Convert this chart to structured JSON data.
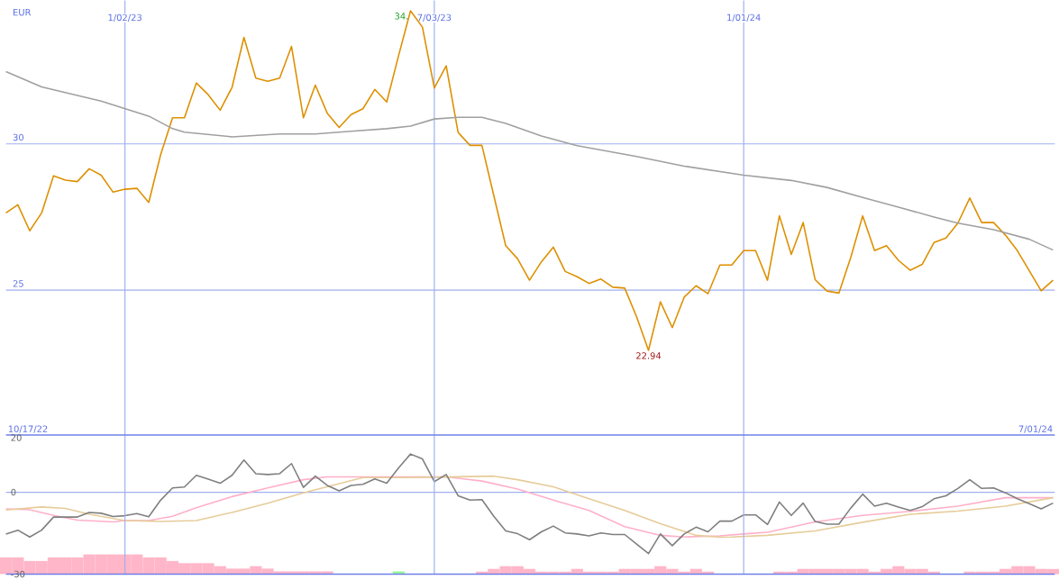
{
  "chart_data": [
    {
      "type": "line",
      "ylabel": "EUR",
      "x": [
        "2022-10-24",
        "2022-10-31",
        "2022-11-07",
        "2022-11-14",
        "2022-11-21",
        "2022-11-28",
        "2022-12-05",
        "2022-12-12",
        "2022-12-19",
        "2022-12-26",
        "2023-01-02",
        "2023-01-09",
        "2023-01-16",
        "2023-01-23",
        "2023-01-30",
        "2023-02-06",
        "2023-02-13",
        "2023-02-20",
        "2023-02-27",
        "2023-03-06",
        "2023-03-13",
        "2023-03-20",
        "2023-03-27",
        "2023-04-03",
        "2023-04-10",
        "2023-04-17",
        "2023-04-24",
        "2023-05-01",
        "2023-05-08",
        "2023-05-15",
        "2023-05-22",
        "2023-05-29",
        "2023-06-05",
        "2023-06-12",
        "2023-06-19",
        "2023-06-26",
        "2023-07-03",
        "2023-07-10",
        "2023-07-17",
        "2023-07-24",
        "2023-07-31",
        "2023-08-07",
        "2023-08-14",
        "2023-08-21",
        "2023-08-28",
        "2023-09-04",
        "2023-09-11",
        "2023-09-18",
        "2023-09-25",
        "2023-10-02",
        "2023-10-09",
        "2023-10-16",
        "2023-10-23",
        "2023-10-30",
        "2023-11-06",
        "2023-11-13",
        "2023-11-20",
        "2023-11-27",
        "2023-12-04",
        "2023-12-11",
        "2023-12-18",
        "2023-12-25",
        "2024-01-01",
        "2024-01-08",
        "2024-01-15",
        "2024-01-22",
        "2024-01-29",
        "2024-02-05",
        "2024-02-12",
        "2024-02-19",
        "2024-02-26",
        "2024-03-04",
        "2024-03-11",
        "2024-03-18",
        "2024-03-25",
        "2024-04-01",
        "2024-04-08",
        "2024-04-15",
        "2024-04-22",
        "2024-04-29",
        "2024-05-06",
        "2024-05-13",
        "2024-05-20",
        "2024-05-27",
        "2024-06-03",
        "2024-06-10",
        "2024-06-17",
        "2024-06-24",
        "2024-07-01"
      ],
      "series": [
        {
          "color": "#dd9000",
          "values": [
            27.64,
            27.92,
            27.03,
            27.64,
            28.91,
            28.76,
            28.71,
            29.15,
            28.93,
            28.35,
            28.45,
            28.48,
            28.0,
            29.63,
            30.89,
            30.89,
            32.08,
            31.68,
            31.15,
            31.93,
            33.64,
            32.25,
            32.14,
            32.25,
            33.33,
            30.89,
            32.01,
            31.05,
            30.56,
            31.0,
            31.2,
            31.86,
            31.43,
            33.02,
            34.55,
            33.99,
            31.91,
            32.67,
            30.39,
            29.95,
            29.95,
            28.23,
            26.52,
            26.07,
            25.34,
            25.97,
            26.47,
            25.64,
            25.46,
            25.23,
            25.38,
            25.1,
            25.07,
            24.09,
            22.94,
            24.6,
            23.72,
            24.76,
            25.15,
            24.88,
            25.86,
            25.86,
            26.35,
            26.35,
            25.34,
            27.54,
            26.22,
            27.31,
            25.36,
            24.97,
            24.9,
            26.12,
            27.54,
            26.35,
            26.52,
            26.02,
            25.68,
            25.88,
            26.63,
            26.78,
            27.29,
            28.15,
            27.31,
            27.31,
            26.88,
            26.35,
            25.66,
            24.98,
            25.34
          ]
        },
        {
          "color": "#a0a0a0",
          "x": [
            "2022-10-24",
            "2022-11-14",
            "2022-12-19",
            "2023-01-16",
            "2023-01-30",
            "2023-02-06",
            "2023-03-06",
            "2023-04-03",
            "2023-04-24",
            "2023-05-15",
            "2023-06-05",
            "2023-06-19",
            "2023-07-03",
            "2023-07-17",
            "2023-07-31",
            "2023-08-14",
            "2023-09-04",
            "2023-09-25",
            "2023-10-30",
            "2023-11-27",
            "2024-01-01",
            "2024-01-29",
            "2024-02-19",
            "2024-03-11",
            "2024-04-01",
            "2024-04-22",
            "2024-05-06",
            "2024-05-27",
            "2024-06-17",
            "2024-07-01"
          ],
          "values": [
            32.47,
            31.95,
            31.46,
            30.95,
            30.52,
            30.4,
            30.24,
            30.34,
            30.34,
            30.43,
            30.52,
            30.61,
            30.85,
            30.91,
            30.91,
            30.7,
            30.27,
            29.94,
            29.57,
            29.24,
            28.93,
            28.75,
            28.51,
            28.17,
            27.84,
            27.5,
            27.29,
            27.07,
            26.74,
            26.37
          ]
        }
      ],
      "xlim": [
        "2022-10-24",
        "2024-07-02"
      ],
      "ylim": [
        20.05,
        34.9
      ],
      "xticks": [
        {
          "value": "2023-01-02",
          "label": "1/02/23"
        },
        {
          "value": "2023-07-03",
          "label": "7/03/23"
        },
        {
          "value": "2024-01-01",
          "label": "1/01/24"
        }
      ],
      "yticks": [
        25,
        30
      ],
      "grid": true,
      "annotations": [
        {
          "text": "34.",
          "x": "2023-06-19",
          "y": 34.55
        },
        {
          "text": "22.94",
          "x": "2023-11-06",
          "y": 22.94
        }
      ]
    },
    {
      "type": "line",
      "x": [
        "2022-10-24",
        "2022-10-31",
        "2022-11-07",
        "2022-11-14",
        "2022-11-21",
        "2022-11-28",
        "2022-12-05",
        "2022-12-12",
        "2022-12-19",
        "2022-12-26",
        "2023-01-02",
        "2023-01-09",
        "2023-01-16",
        "2023-01-23",
        "2023-01-30",
        "2023-02-06",
        "2023-02-13",
        "2023-02-20",
        "2023-02-27",
        "2023-03-06",
        "2023-03-13",
        "2023-03-20",
        "2023-03-27",
        "2023-04-03",
        "2023-04-10",
        "2023-04-17",
        "2023-04-24",
        "2023-05-01",
        "2023-05-08",
        "2023-05-15",
        "2023-05-22",
        "2023-05-29",
        "2023-06-05",
        "2023-06-12",
        "2023-06-19",
        "2023-06-26",
        "2023-07-03",
        "2023-07-10",
        "2023-07-17",
        "2023-07-24",
        "2023-07-31",
        "2023-08-07",
        "2023-08-14",
        "2023-08-21",
        "2023-08-28",
        "2023-09-04",
        "2023-09-11",
        "2023-09-18",
        "2023-09-25",
        "2023-10-02",
        "2023-10-09",
        "2023-10-16",
        "2023-10-23",
        "2023-10-30",
        "2023-11-06",
        "2023-11-13",
        "2023-11-20",
        "2023-11-27",
        "2023-12-04",
        "2023-12-11",
        "2023-12-18",
        "2023-12-25",
        "2024-01-01",
        "2024-01-08",
        "2024-01-15",
        "2024-01-22",
        "2024-01-29",
        "2024-02-05",
        "2024-02-12",
        "2024-02-19",
        "2024-02-26",
        "2024-03-04",
        "2024-03-11",
        "2024-03-18",
        "2024-03-25",
        "2024-04-01",
        "2024-04-08",
        "2024-04-15",
        "2024-04-22",
        "2024-04-29",
        "2024-05-06",
        "2024-05-13",
        "2024-05-20",
        "2024-05-27",
        "2024-06-03",
        "2024-06-10",
        "2024-06-17",
        "2024-06-24",
        "2024-07-01"
      ],
      "series": [
        {
          "type": "bar",
          "color": "#ffb6c8",
          "base": [
            -30,
            -30,
            -30,
            -30,
            -30,
            -30,
            -30,
            -30,
            -30,
            -30,
            -30,
            -30,
            -30,
            -30,
            -30,
            -30,
            -30,
            -30,
            -30,
            -30,
            -30,
            -30,
            -30,
            -30,
            -30,
            -30,
            -30,
            -30,
            null,
            null,
            null,
            null,
            null,
            -30,
            null,
            null,
            null,
            null,
            null,
            null,
            -30,
            -30,
            -30,
            -30,
            -30,
            -30,
            -30,
            -30,
            -30,
            -30,
            -30,
            -30,
            -30,
            -30,
            -30,
            -30,
            -30,
            -30,
            -30,
            -30,
            null,
            null,
            null,
            null,
            null,
            -30,
            -30,
            -30,
            -30,
            -30,
            -30,
            -30,
            -30,
            -30,
            -30,
            -30,
            -30,
            -30,
            -30,
            null,
            null,
            -30,
            -30,
            -30,
            -30,
            -30,
            -30,
            -30,
            -30
          ],
          "colors": [
            "#ffb6c8",
            "#ffb6c8",
            "#ffb6c8",
            "#ffb6c8",
            "#ffb6c8",
            "#ffb6c8",
            "#ffb6c8",
            "#ffb6c8",
            "#ffb6c8",
            "#ffb6c8",
            "#ffb6c8",
            "#ffb6c8",
            "#ffb6c8",
            "#ffb6c8",
            "#ffb6c8",
            "#ffb6c8",
            "#ffb6c8",
            "#ffb6c8",
            "#ffb6c8",
            "#ffb6c8",
            "#ffb6c8",
            "#ffb6c8",
            "#ffb6c8",
            "#ffb6c8",
            "#ffb6c8",
            "#ffb6c8",
            "#ffb6c8",
            "#ffb6c8",
            "#ffb6c8",
            "#ffb6c8",
            "#ffb6c8",
            "#ffb6c8",
            "#ffb6c8",
            "#98fb98",
            "#ffb6c8",
            "#ffb6c8",
            "#ffb6c8",
            "#ffb6c8",
            "#ffb6c8",
            "#ffb6c8",
            "#ffb6c8",
            "#ffb6c8",
            "#ffb6c8",
            "#ffb6c8",
            "#ffb6c8",
            "#ffb6c8",
            "#ffb6c8",
            "#ffb6c8",
            "#ffb6c8",
            "#ffb6c8",
            "#ffb6c8",
            "#ffb6c8",
            "#ffb6c8",
            "#ffb6c8",
            "#ffb6c8",
            "#ffb6c8",
            "#ffb6c8",
            "#ffb6c8",
            "#ffb6c8",
            "#ffb6c8",
            "#ffb6c8",
            "#ffb6c8",
            "#ffb6c8",
            "#ffb6c8",
            "#ffb6c8",
            "#ffb6c8",
            "#ffb6c8",
            "#ffb6c8",
            "#ffb6c8",
            "#ffb6c8",
            "#ffb6c8",
            "#ffb6c8",
            "#ffb6c8",
            "#ffb6c8",
            "#ffb6c8",
            "#ffb6c8",
            "#ffb6c8",
            "#ffb6c8",
            "#ffb6c8",
            "#ffb6c8",
            "#ffb6c8",
            "#ffb6c8",
            "#ffb6c8",
            "#ffb6c8",
            "#ffb6c8",
            "#ffb6c8",
            "#ffb6c8",
            "#ffb6c8",
            "#ffb6c8"
          ],
          "values": [
            6.1,
            6.1,
            4.8,
            4.8,
            6.1,
            6.1,
            6.1,
            7.2,
            7.2,
            7.2,
            7.2,
            7.2,
            6.1,
            6.1,
            4.8,
            4.0,
            4.0,
            4.0,
            2.9,
            2.0,
            2.0,
            2.9,
            2.0,
            1.0,
            1.0,
            1.0,
            1.0,
            1.0,
            null,
            null,
            null,
            null,
            null,
            1.0,
            null,
            null,
            null,
            null,
            null,
            null,
            0.9,
            1.9,
            2.9,
            2.9,
            1.9,
            0.9,
            0.9,
            0.9,
            1.9,
            0.9,
            0.9,
            0.9,
            1.9,
            1.9,
            1.9,
            2.9,
            1.9,
            0.9,
            1.9,
            0.9,
            null,
            null,
            null,
            null,
            null,
            0.9,
            0.9,
            1.9,
            1.9,
            1.9,
            1.9,
            1.9,
            1.9,
            0.9,
            1.9,
            2.9,
            1.9,
            1.9,
            0.9,
            null,
            null,
            0.9,
            0.9,
            0.9,
            1.9,
            2.9,
            2.9,
            1.9,
            1.9
          ]
        },
        {
          "color": "#ffb0c8",
          "x": [
            "2022-10-24",
            "2022-11-07",
            "2022-11-21",
            "2022-12-05",
            "2022-12-26",
            "2023-01-02",
            "2023-01-16",
            "2023-01-30",
            "2023-02-13",
            "2023-03-06",
            "2023-03-27",
            "2023-04-17",
            "2023-05-01",
            "2023-05-22",
            "2023-06-12",
            "2023-07-10",
            "2023-07-31",
            "2023-08-21",
            "2023-09-11",
            "2023-10-02",
            "2023-10-23",
            "2023-11-13",
            "2023-11-27",
            "2023-12-18",
            "2024-01-01",
            "2024-01-15",
            "2024-02-12",
            "2024-03-11",
            "2024-04-08",
            "2024-05-06",
            "2024-06-03",
            "2024-06-17",
            "2024-07-01"
          ],
          "values": [
            -6.1,
            -6.4,
            -8.5,
            -10.2,
            -10.9,
            -10.4,
            -10.4,
            -8.8,
            -5.7,
            -1.6,
            1.6,
            4.6,
            5.6,
            5.6,
            5.6,
            5.6,
            4.1,
            1.2,
            -2.9,
            -6.7,
            -12.6,
            -15.8,
            -16.4,
            -16.0,
            -15.3,
            -14.7,
            -10.9,
            -8.5,
            -7.0,
            -5.1,
            -2.0,
            -2.0,
            -2.0
          ]
        },
        {
          "color": "#e6cc99",
          "x": [
            "2022-10-24",
            "2022-11-14",
            "2022-11-28",
            "2022-12-12",
            "2023-01-02",
            "2023-01-23",
            "2023-02-13",
            "2023-03-06",
            "2023-03-27",
            "2023-04-17",
            "2023-05-22",
            "2023-06-12",
            "2023-07-03",
            "2023-08-07",
            "2023-08-21",
            "2023-09-11",
            "2023-10-02",
            "2023-10-23",
            "2023-11-13",
            "2023-12-04",
            "2023-12-18",
            "2023-12-25",
            "2024-01-15",
            "2024-02-12",
            "2024-03-11",
            "2024-04-08",
            "2024-05-06",
            "2024-06-03",
            "2024-07-01"
          ],
          "values": [
            -6.5,
            -5.4,
            -5.9,
            -8.1,
            -10.4,
            -10.7,
            -10.4,
            -7.4,
            -4.0,
            -0.2,
            5.4,
            5.4,
            5.5,
            5.9,
            4.6,
            2.0,
            -2.4,
            -6.7,
            -11.5,
            -15.8,
            -16.5,
            -16.4,
            -15.8,
            -14.2,
            -11.0,
            -8.1,
            -6.9,
            -5.1,
            -2.0
          ]
        },
        {
          "color": "#7f7f7f",
          "values": [
            -15.3,
            -13.9,
            -16.4,
            -13.9,
            -9.1,
            -9.1,
            -9.1,
            -7.4,
            -7.7,
            -8.9,
            -8.6,
            -7.8,
            -9.0,
            -2.9,
            1.6,
            1.9,
            6.2,
            4.8,
            3.3,
            6.2,
            11.8,
            6.8,
            6.5,
            6.8,
            10.5,
            1.8,
            5.9,
            2.5,
            0.5,
            2.5,
            2.9,
            4.9,
            3.3,
            8.9,
            14.0,
            12.2,
            3.9,
            6.5,
            -1.3,
            -2.9,
            -2.7,
            -8.8,
            -14.2,
            -15.2,
            -17.4,
            -14.5,
            -12.4,
            -14.9,
            -15.3,
            -16.0,
            -14.9,
            -15.5,
            -15.5,
            -19.0,
            -22.5,
            -15.3,
            -19.6,
            -15.3,
            -12.8,
            -14.5,
            -10.6,
            -10.6,
            -8.3,
            -8.3,
            -11.8,
            -3.6,
            -8.5,
            -4.0,
            -10.7,
            -11.7,
            -11.7,
            -5.8,
            -0.7,
            -5.1,
            -4.0,
            -5.4,
            -6.7,
            -5.3,
            -2.4,
            -1.3,
            1.4,
            4.6,
            1.4,
            1.6,
            -0.2,
            -2.4,
            -4.2,
            -6.1,
            -4.0
          ]
        }
      ],
      "xlim": [
        "2022-10-24",
        "2024-07-02"
      ],
      "ylim": [
        -30,
        21
      ],
      "xticks": [
        {
          "value": "2023-01-02",
          "label": null
        },
        {
          "value": "2023-07-03",
          "label": null
        },
        {
          "value": "2024-01-01",
          "label": null
        }
      ],
      "yticks": [
        20,
        0,
        -30
      ],
      "grid": "x",
      "tick_labels": "y",
      "ref_lines": [
        {
          "axis": "y",
          "value": 0,
          "color": "#a0b0f0"
        }
      ],
      "annotations": [
        "10/17/22",
        "7/01/24"
      ]
    }
  ]
}
